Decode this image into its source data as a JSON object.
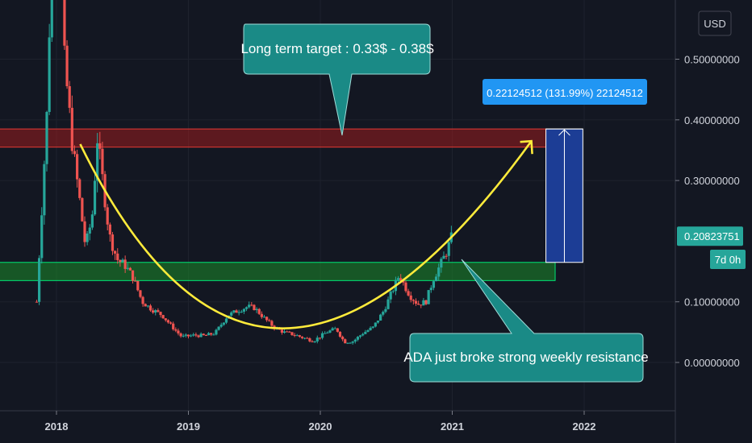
{
  "currency_button": "USD",
  "chart_data": {
    "type": "candlestick",
    "title": "",
    "ylim": [
      -0.06,
      0.62
    ],
    "y_ticks": [
      {
        "value": 0.5,
        "label": "0.50000000"
      },
      {
        "value": 0.4,
        "label": "0.40000000"
      },
      {
        "value": 0.3,
        "label": "0.30000000"
      },
      {
        "value": 0.1,
        "label": "0.10000000"
      },
      {
        "value": 0.0,
        "label": "0.00000000"
      }
    ],
    "x_ticks": [
      {
        "value": 2018.0,
        "label": "2018"
      },
      {
        "value": 2019.0,
        "label": "2019"
      },
      {
        "value": 2020.0,
        "label": "2020"
      },
      {
        "value": 2021.0,
        "label": "2021"
      },
      {
        "value": 2022.0,
        "label": "2022"
      }
    ],
    "xlim": [
      2017.6,
      2022.65
    ],
    "up_color": "#26a69a",
    "down_color": "#ef5350",
    "price_path": [
      [
        2017.85,
        0.1
      ],
      [
        2017.93,
        0.42
      ],
      [
        2017.97,
        0.75
      ],
      [
        2018.02,
        0.85
      ],
      [
        2018.06,
        0.5
      ],
      [
        2018.12,
        0.36
      ],
      [
        2018.18,
        0.26
      ],
      [
        2018.22,
        0.19
      ],
      [
        2018.27,
        0.24
      ],
      [
        2018.31,
        0.37
      ],
      [
        2018.35,
        0.3
      ],
      [
        2018.4,
        0.21
      ],
      [
        2018.46,
        0.17
      ],
      [
        2018.52,
        0.16
      ],
      [
        2018.58,
        0.14
      ],
      [
        2018.65,
        0.1
      ],
      [
        2018.72,
        0.088
      ],
      [
        2018.8,
        0.078
      ],
      [
        2018.88,
        0.058
      ],
      [
        2018.95,
        0.042
      ],
      [
        2019.05,
        0.045
      ],
      [
        2019.12,
        0.044
      ],
      [
        2019.2,
        0.048
      ],
      [
        2019.3,
        0.078
      ],
      [
        2019.38,
        0.086
      ],
      [
        2019.45,
        0.092
      ],
      [
        2019.5,
        0.09
      ],
      [
        2019.58,
        0.072
      ],
      [
        2019.65,
        0.058
      ],
      [
        2019.72,
        0.05
      ],
      [
        2019.8,
        0.046
      ],
      [
        2019.88,
        0.04
      ],
      [
        2019.95,
        0.036
      ],
      [
        2020.05,
        0.05
      ],
      [
        2020.12,
        0.056
      ],
      [
        2020.18,
        0.034
      ],
      [
        2020.25,
        0.035
      ],
      [
        2020.32,
        0.048
      ],
      [
        2020.4,
        0.058
      ],
      [
        2020.48,
        0.085
      ],
      [
        2020.55,
        0.12
      ],
      [
        2020.6,
        0.145
      ],
      [
        2020.63,
        0.13
      ],
      [
        2020.68,
        0.11
      ],
      [
        2020.74,
        0.096
      ],
      [
        2020.8,
        0.1
      ],
      [
        2020.86,
        0.14
      ],
      [
        2020.92,
        0.165
      ],
      [
        2020.96,
        0.185
      ],
      [
        2021.0,
        0.209
      ]
    ],
    "last_price": {
      "value": 0.20823751,
      "label": "0.20823751"
    },
    "timeframe_badge": "7d 0h"
  },
  "zones": {
    "resistance_zone": {
      "y_low": 0.355,
      "y_high": 0.385,
      "x_start": 2017.47,
      "x_end": 2021.71,
      "color": "#b71c1c"
    },
    "support_zone": {
      "y_low": 0.135,
      "y_high": 0.165,
      "x_start": 2017.44,
      "x_end": 2021.78,
      "color": "#1b8c2a"
    }
  },
  "measure_box": {
    "x_start": 2021.71,
    "x_end": 2021.99,
    "y_low": 0.165,
    "y_high": 0.385,
    "label": "0.22124512 (131.99%) 22124512"
  },
  "curve": {
    "start": [
      2018.18,
      0.36
    ],
    "control": [
      2019.55,
      -0.25
    ],
    "end": [
      2021.6,
      0.365
    ],
    "color": "#ffeb3b"
  },
  "callouts": {
    "target": "Long term target : 0.33$ - 0.38$",
    "resistance": "ADA just broke strong weekly resistance"
  }
}
